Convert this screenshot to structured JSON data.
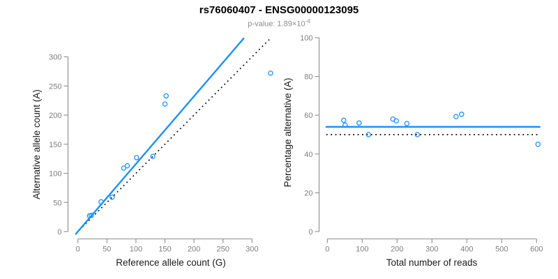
{
  "header": {
    "title": "rs76060407 - ENSG00000123095",
    "subtitle_prefix": "p-value: 1.89×10",
    "subtitle_exponent": "-4"
  },
  "colors": {
    "accent_blue": "#1E90FF",
    "dotted_black": "#000000",
    "axis_gray": "#8c8c8c",
    "tick_label_gray": "#7d7d7d",
    "axis_title_dark": "#1a1a1a",
    "subtitle_gray": "#8c8c8c"
  },
  "chart_data": [
    {
      "id": "allele-count-scatter",
      "type": "scatter",
      "xlabel": "Reference allele count (G)",
      "ylabel": "Alternative allele count (A)",
      "xticks": [
        0,
        50,
        100,
        150,
        200,
        250,
        300
      ],
      "yticks": [
        0,
        50,
        100,
        150,
        200,
        250,
        300
      ],
      "xlim": [
        -4,
        336
      ],
      "ylim": [
        -4,
        336
      ],
      "grid": false,
      "points": [
        [
          20,
          27
        ],
        [
          23,
          28
        ],
        [
          40,
          51
        ],
        [
          59,
          59
        ],
        [
          79,
          109
        ],
        [
          85,
          113
        ],
        [
          101,
          127
        ],
        [
          129,
          129
        ],
        [
          150,
          219
        ],
        [
          152,
          233
        ],
        [
          332,
          272
        ]
      ],
      "fit_line": {
        "x1": -3.5,
        "y1": -4,
        "x2": 285.5,
        "y2": 331.5,
        "style": "solid",
        "slope": 1.16,
        "intercept": 0
      },
      "identity_line": {
        "x1": -3,
        "y1": -3,
        "x2": 331,
        "y2": 331,
        "style": "dotted",
        "slope": 1,
        "intercept": 0
      }
    },
    {
      "id": "percentage-scatter",
      "type": "scatter",
      "xlabel": "Total number of reads",
      "ylabel": "Percentage alternative (A)",
      "xticks": [
        0,
        100,
        200,
        300,
        400,
        500,
        600
      ],
      "yticks": [
        0,
        20,
        40,
        60,
        80,
        100
      ],
      "xlim": [
        -25,
        635
      ],
      "ylim": [
        0,
        100
      ],
      "grid": false,
      "points": [
        [
          47,
          57.4
        ],
        [
          51,
          54.9
        ],
        [
          91,
          56.0
        ],
        [
          118,
          50.0
        ],
        [
          188,
          58.0
        ],
        [
          198,
          57.1
        ],
        [
          228,
          55.7
        ],
        [
          258,
          50.0
        ],
        [
          369,
          59.3
        ],
        [
          385,
          60.5
        ],
        [
          604,
          45.0
        ]
      ],
      "fit_line": {
        "x1": -3,
        "y1": 54,
        "x2": 609,
        "y2": 54,
        "style": "solid",
        "value": 54
      },
      "identity_line": {
        "x1": -3,
        "y1": 50,
        "x2": 609,
        "y2": 50,
        "style": "dotted",
        "value": 50
      }
    }
  ]
}
